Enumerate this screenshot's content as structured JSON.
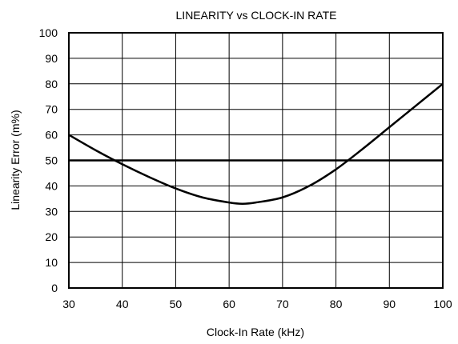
{
  "chart_data": {
    "type": "line",
    "title": "LINEARITY vs CLOCK-IN RATE",
    "xlabel": "Clock-In Rate (kHz)",
    "ylabel": "Linearity Error (m%)",
    "xlim": [
      30,
      100
    ],
    "ylim": [
      0,
      100
    ],
    "x_ticks": [
      30,
      40,
      50,
      60,
      70,
      80,
      90,
      100
    ],
    "y_ticks": [
      0,
      10,
      20,
      30,
      40,
      50,
      60,
      70,
      80,
      90,
      100
    ],
    "x_tick_labels": [
      "30",
      "40",
      "50",
      "60",
      "70",
      "80",
      "90",
      "100"
    ],
    "y_tick_labels": [
      "0",
      "10",
      "20",
      "30",
      "40",
      "50",
      "60",
      "70",
      "80",
      "90",
      "100"
    ],
    "grid": true,
    "legend": "none",
    "line_color": "#000000",
    "series": [
      {
        "x": [
          30,
          35,
          40,
          45,
          50,
          55,
          60,
          62.5,
          65,
          70,
          75,
          80,
          85,
          90,
          95,
          100
        ],
        "y": [
          60,
          54,
          48.5,
          43.5,
          39,
          35.5,
          33.5,
          33,
          33.5,
          35.5,
          40,
          46.5,
          54.5,
          63,
          71.5,
          80
        ]
      },
      {
        "x": [
          30,
          100
        ],
        "y": [
          50,
          50
        ]
      }
    ]
  }
}
